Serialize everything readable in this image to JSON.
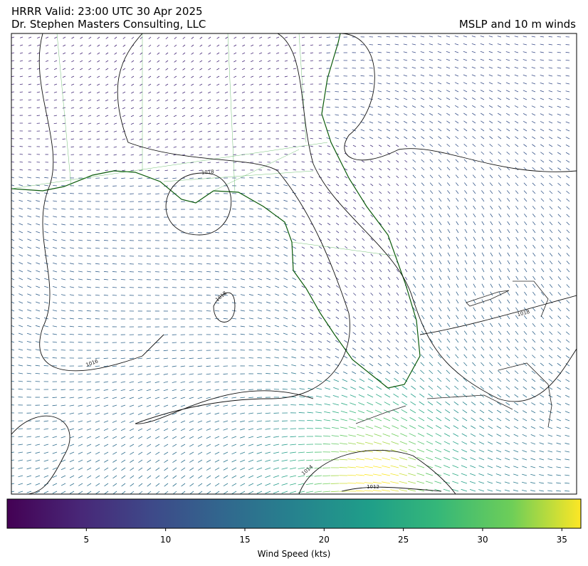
{
  "title": "HRRR  Valid: 23:00 UTC 30 Apr 2025",
  "subtitle": "Dr. Stephen Masters Consulting, LLC",
  "right_title": "MSLP and 10 m winds",
  "contour_labels": [
    1018,
    1018,
    1018,
    1016,
    1014,
    1012
  ],
  "colorbar": {
    "label": "Wind Speed (kts)",
    "lim": [
      0,
      36.2
    ],
    "ticks": [
      5,
      10,
      15,
      20,
      25,
      30,
      35
    ]
  }
}
